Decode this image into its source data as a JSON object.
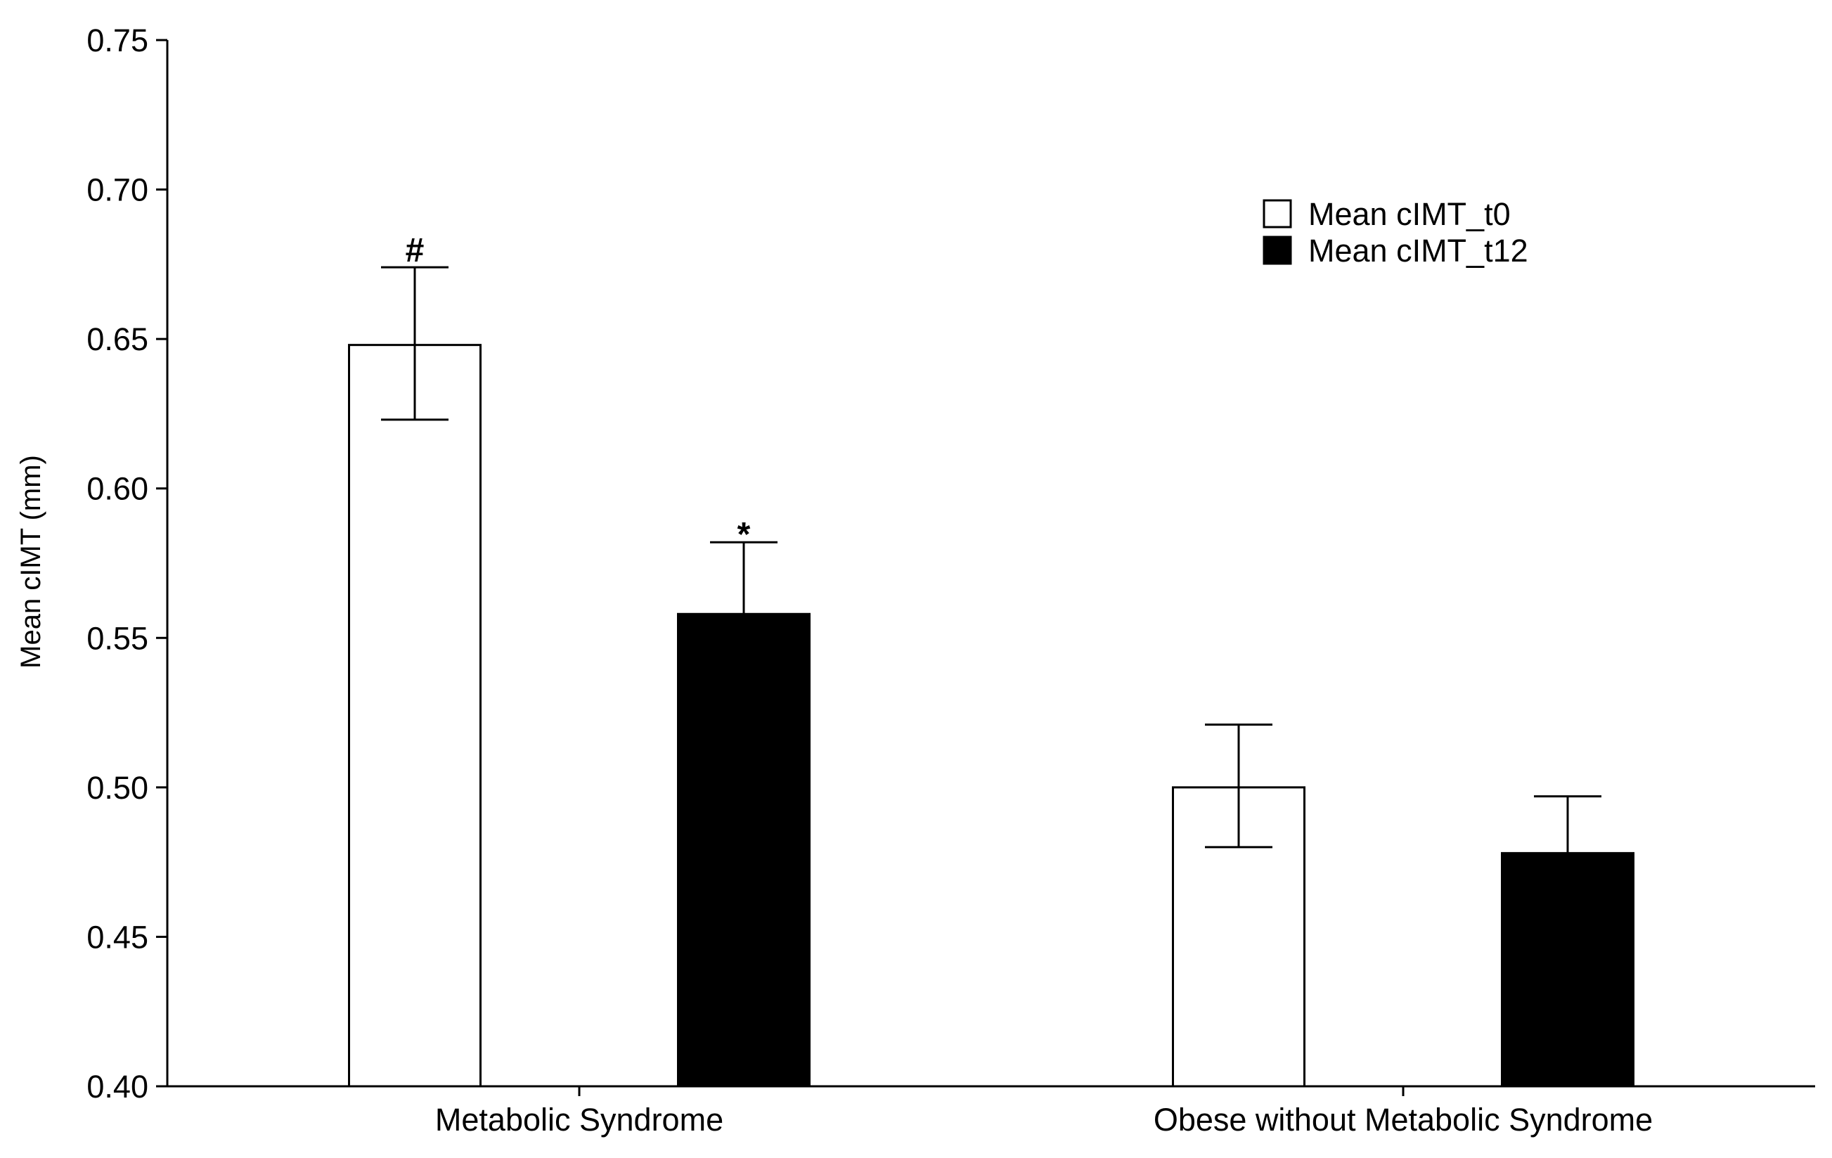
{
  "chart_data": {
    "type": "bar",
    "title": "",
    "xlabel": "",
    "ylabel": "Mean cIMT (mm)",
    "ylim": [
      0.4,
      0.75
    ],
    "yticks": [
      "0.40",
      "0.45",
      "0.50",
      "0.55",
      "0.60",
      "0.65",
      "0.70",
      "0.75"
    ],
    "grid": false,
    "legend_position": "top-right",
    "categories": [
      "Metabolic Syndrome",
      "Obese without Metabolic Syndrome"
    ],
    "series": [
      {
        "name": "Mean cIMT_t0",
        "color": "#ffffff",
        "values": [
          0.648,
          0.5
        ],
        "error_upper": [
          0.674,
          0.521
        ],
        "error_lower": [
          0.623,
          0.48
        ],
        "annotations": [
          "#",
          ""
        ]
      },
      {
        "name": "Mean cIMT_t12",
        "color": "#000000",
        "values": [
          0.558,
          0.478
        ],
        "error_upper": [
          0.582,
          0.497
        ],
        "error_lower": [
          null,
          null
        ],
        "annotations": [
          "*",
          ""
        ]
      }
    ]
  }
}
